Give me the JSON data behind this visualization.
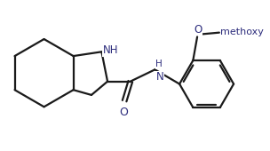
{
  "bg_color": "#ffffff",
  "line_color": "#2c2c7c",
  "line_width": 1.6,
  "font_size": 8.5,
  "bond_color": "#1a1a1a",
  "atoms": {
    "NH_bicyclic": "NH",
    "NH_amide": "H",
    "O_carbonyl": "O",
    "O_methoxy": "O",
    "methoxy": "methoxy"
  }
}
